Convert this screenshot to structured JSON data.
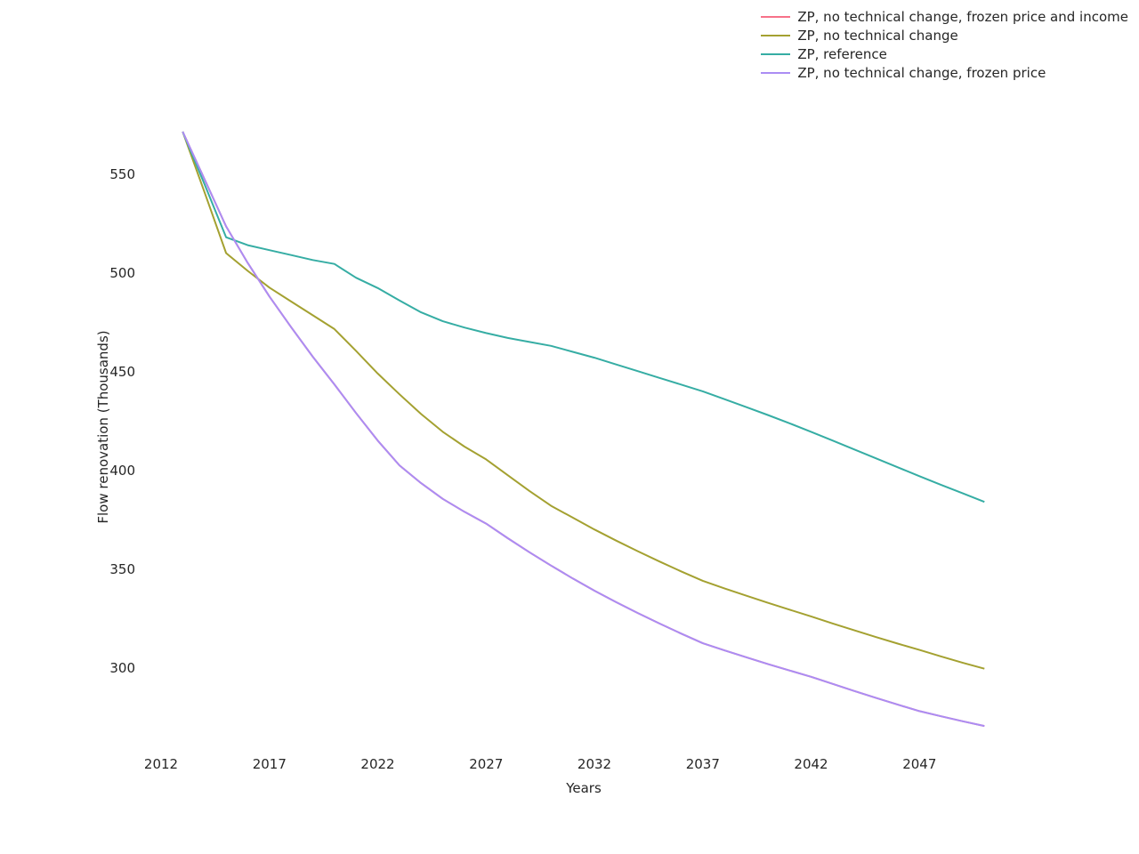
{
  "chart_data": {
    "type": "line",
    "title": "",
    "xlabel": "Years",
    "ylabel": "Flow renovation (Thousands)",
    "grid": false,
    "legend_position": "top-right",
    "axis_spines_visible": false,
    "text_color": "#262626",
    "background_color": "#ffffff",
    "xlim": [
      2011.3,
      2051.2
    ],
    "ylim": [
      263,
      580
    ],
    "x_ticks": [
      2012,
      2017,
      2022,
      2027,
      2032,
      2037,
      2042,
      2047
    ],
    "y_ticks": [
      300,
      350,
      400,
      450,
      500,
      550
    ],
    "x": [
      2013,
      2014,
      2015,
      2016,
      2017,
      2018,
      2019,
      2020,
      2021,
      2022,
      2023,
      2024,
      2025,
      2026,
      2027,
      2028,
      2029,
      2030,
      2031,
      2032,
      2033,
      2034,
      2035,
      2036,
      2037,
      2038,
      2039,
      2040,
      2041,
      2042,
      2043,
      2044,
      2045,
      2046,
      2047,
      2048,
      2049,
      2050
    ],
    "series": [
      {
        "name": "ZP, no technical change, frozen price and income",
        "color": "#f77189",
        "values": [
          571.5,
          547.5,
          523.5,
          505,
          488,
          472.5,
          457.5,
          443.5,
          429,
          415,
          402.5,
          393.5,
          385.5,
          379,
          373,
          365.6,
          358.5,
          351.7,
          345.2,
          339,
          333.2,
          327.7,
          322.4,
          317.3,
          312.4,
          308.8,
          305.3,
          301.9,
          298.6,
          295.4,
          291.8,
          288.2,
          284.7,
          281.3,
          278,
          275.4,
          272.9,
          270.5
        ]
      },
      {
        "name": "ZP, no technical change",
        "color": "#a4a131",
        "values": [
          571.5,
          541,
          510,
          501,
          492.5,
          485.5,
          478.5,
          471.5,
          460.5,
          449,
          438.5,
          428.5,
          419.5,
          412,
          405.5,
          397.5,
          389.5,
          382,
          376,
          370,
          364.4,
          359,
          353.8,
          348.8,
          344,
          340.2,
          336.5,
          332.9,
          329.4,
          326,
          322.4,
          318.9,
          315.5,
          312.2,
          309,
          305.7,
          302.5,
          299.5
        ]
      },
      {
        "name": "ZP, reference",
        "color": "#36ada4",
        "values": [
          571.5,
          545,
          518,
          514,
          511.5,
          509,
          506.5,
          504.5,
          497.5,
          492.3,
          486,
          480,
          475.5,
          472.3,
          469.5,
          467,
          465,
          463,
          460,
          457,
          453.6,
          450.2,
          446.8,
          443.4,
          440,
          436,
          432,
          428,
          423.8,
          419.5,
          415,
          410.5,
          406,
          401.5,
          397,
          392.6,
          388.3,
          384
        ]
      },
      {
        "name": "ZP, no technical change, frozen price",
        "color": "#ab8df4",
        "values": [
          571.5,
          547.5,
          523.5,
          505,
          488,
          472.5,
          457.5,
          443.5,
          429,
          415,
          402.5,
          393.5,
          385.5,
          379,
          373,
          365.6,
          358.5,
          351.7,
          345.2,
          339,
          333.2,
          327.7,
          322.4,
          317.3,
          312.4,
          308.8,
          305.3,
          301.9,
          298.6,
          295.4,
          291.8,
          288.2,
          284.7,
          281.3,
          278,
          275.4,
          272.9,
          270.5
        ]
      }
    ],
    "legend_order": [
      "ZP, no technical change, frozen price and income",
      "ZP, no technical change",
      "ZP, reference",
      "ZP, no technical change, frozen price"
    ]
  }
}
